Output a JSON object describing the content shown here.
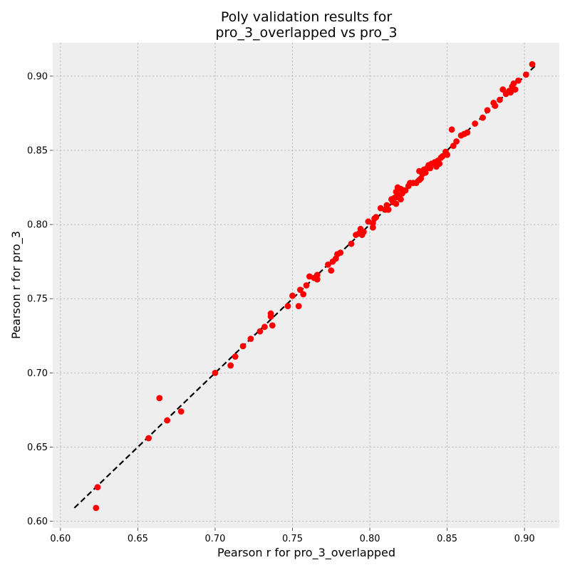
{
  "chart_data": {
    "type": "scatter",
    "title": [
      "Poly validation results for",
      "pro_3_overlapped vs pro_3"
    ],
    "xlabel": "Pearson r for pro_3_overlapped",
    "ylabel": "Pearson r for pro_3",
    "xlim": [
      0.595,
      0.9225
    ],
    "ylim": [
      0.5955,
      0.9225
    ],
    "xticks": [
      0.6,
      0.65,
      0.7,
      0.75,
      0.8,
      0.85,
      0.9
    ],
    "yticks": [
      0.6,
      0.65,
      0.7,
      0.75,
      0.8,
      0.85,
      0.9
    ],
    "xtick_labels": [
      "0.60",
      "0.65",
      "0.70",
      "0.75",
      "0.80",
      "0.85",
      "0.90"
    ],
    "ytick_labels": [
      "0.60",
      "0.65",
      "0.70",
      "0.75",
      "0.80",
      "0.85",
      "0.90"
    ],
    "grid": true,
    "background_color": "#eeeeee",
    "point_color": "#ff0000",
    "reference_line": {
      "x": [
        0.609,
        0.907
      ],
      "y": [
        0.609,
        0.907
      ],
      "style": "dashed",
      "color": "#000000"
    },
    "points": [
      [
        0.623,
        0.609
      ],
      [
        0.624,
        0.623
      ],
      [
        0.657,
        0.656
      ],
      [
        0.664,
        0.683
      ],
      [
        0.669,
        0.668
      ],
      [
        0.678,
        0.674
      ],
      [
        0.7,
        0.7
      ],
      [
        0.71,
        0.705
      ],
      [
        0.713,
        0.711
      ],
      [
        0.718,
        0.718
      ],
      [
        0.723,
        0.723
      ],
      [
        0.729,
        0.728
      ],
      [
        0.732,
        0.731
      ],
      [
        0.736,
        0.74
      ],
      [
        0.736,
        0.738
      ],
      [
        0.737,
        0.732
      ],
      [
        0.747,
        0.745
      ],
      [
        0.75,
        0.752
      ],
      [
        0.754,
        0.745
      ],
      [
        0.755,
        0.756
      ],
      [
        0.757,
        0.753
      ],
      [
        0.759,
        0.759
      ],
      [
        0.761,
        0.765
      ],
      [
        0.764,
        0.764
      ],
      [
        0.766,
        0.763
      ],
      [
        0.766,
        0.766
      ],
      [
        0.773,
        0.773
      ],
      [
        0.775,
        0.769
      ],
      [
        0.776,
        0.775
      ],
      [
        0.778,
        0.777
      ],
      [
        0.779,
        0.78
      ],
      [
        0.781,
        0.781
      ],
      [
        0.788,
        0.787
      ],
      [
        0.791,
        0.793
      ],
      [
        0.793,
        0.794
      ],
      [
        0.794,
        0.797
      ],
      [
        0.795,
        0.793
      ],
      [
        0.796,
        0.795
      ],
      [
        0.799,
        0.802
      ],
      [
        0.802,
        0.798
      ],
      [
        0.802,
        0.801
      ],
      [
        0.803,
        0.804
      ],
      [
        0.804,
        0.805
      ],
      [
        0.807,
        0.811
      ],
      [
        0.81,
        0.81
      ],
      [
        0.811,
        0.813
      ],
      [
        0.812,
        0.81
      ],
      [
        0.814,
        0.817
      ],
      [
        0.815,
        0.815
      ],
      [
        0.816,
        0.818
      ],
      [
        0.817,
        0.814
      ],
      [
        0.817,
        0.822
      ],
      [
        0.818,
        0.825
      ],
      [
        0.818,
        0.82
      ],
      [
        0.819,
        0.818
      ],
      [
        0.82,
        0.824
      ],
      [
        0.82,
        0.817
      ],
      [
        0.821,
        0.821
      ],
      [
        0.822,
        0.823
      ],
      [
        0.823,
        0.823
      ],
      [
        0.825,
        0.826
      ],
      [
        0.826,
        0.828
      ],
      [
        0.828,
        0.828
      ],
      [
        0.83,
        0.828
      ],
      [
        0.832,
        0.83
      ],
      [
        0.832,
        0.836
      ],
      [
        0.833,
        0.831
      ],
      [
        0.834,
        0.834
      ],
      [
        0.835,
        0.837
      ],
      [
        0.836,
        0.835
      ],
      [
        0.837,
        0.838
      ],
      [
        0.838,
        0.84
      ],
      [
        0.839,
        0.838
      ],
      [
        0.84,
        0.841
      ],
      [
        0.842,
        0.842
      ],
      [
        0.843,
        0.839
      ],
      [
        0.844,
        0.843
      ],
      [
        0.845,
        0.841
      ],
      [
        0.846,
        0.845
      ],
      [
        0.847,
        0.846
      ],
      [
        0.849,
        0.849
      ],
      [
        0.85,
        0.847
      ],
      [
        0.853,
        0.864
      ],
      [
        0.854,
        0.853
      ],
      [
        0.856,
        0.856
      ],
      [
        0.859,
        0.86
      ],
      [
        0.861,
        0.861
      ],
      [
        0.863,
        0.862
      ],
      [
        0.868,
        0.868
      ],
      [
        0.873,
        0.872
      ],
      [
        0.876,
        0.877
      ],
      [
        0.88,
        0.882
      ],
      [
        0.881,
        0.88
      ],
      [
        0.884,
        0.884
      ],
      [
        0.886,
        0.891
      ],
      [
        0.888,
        0.888
      ],
      [
        0.89,
        0.89
      ],
      [
        0.891,
        0.889
      ],
      [
        0.892,
        0.893
      ],
      [
        0.893,
        0.895
      ],
      [
        0.894,
        0.891
      ],
      [
        0.896,
        0.897
      ],
      [
        0.901,
        0.901
      ],
      [
        0.905,
        0.908
      ]
    ]
  }
}
